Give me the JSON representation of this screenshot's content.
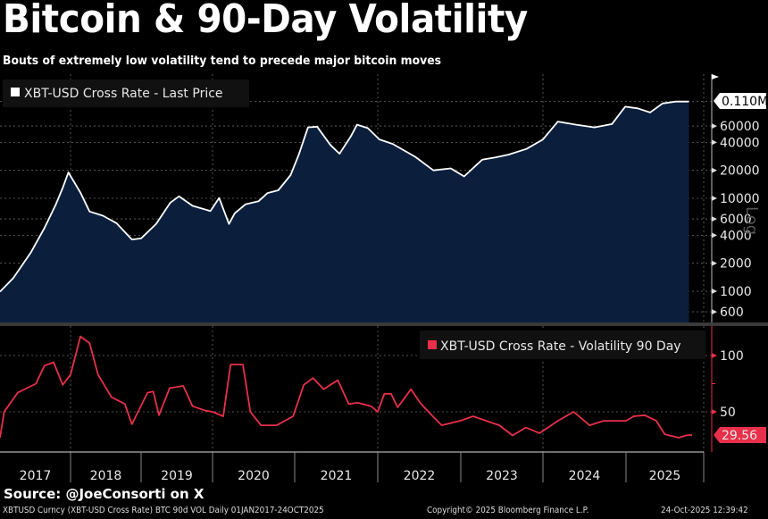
{
  "header": {
    "title": "Bitcoin & 90-Day Volatility",
    "subtitle": "Bouts of extremely low volatility tend to precede major bitcoin moves"
  },
  "footer": {
    "source": "Source: @JoeConsorti on X",
    "security_line": "XBTUSD Curncy (XBT-USD Cross Rate) BTC 90d VOL Daily 01JAN2017-24OCT2025",
    "copyright": "Copyright© 2025 Bloomberg Finance L.P.",
    "timestamp": "24-Oct-2025 12:39:42"
  },
  "colors": {
    "background": "#000000",
    "price_line": "#ffffff",
    "price_fill": "#0b1f3d",
    "vol_line": "#e8304a",
    "grid": "#6a6a6a"
  },
  "chart_data": [
    {
      "type": "area",
      "title": "XBT-USD Cross Rate - Last Price",
      "legend": "XBT-USD Cross Rate - Last Price",
      "legend_position": "top-left",
      "yscale": "log",
      "ylabel": "Log",
      "ylim": [
        500,
        150000
      ],
      "yticks": [
        600,
        1000,
        2000,
        4000,
        6000,
        10000,
        20000,
        40000,
        60000
      ],
      "ytick_labels": [
        "600",
        "1000",
        "2000",
        "4000",
        "6000",
        "10000",
        "20000",
        "40000",
        "60000"
      ],
      "last_value_label": "0.110M",
      "last_value": 110000,
      "grid": true,
      "x": [
        2017.0,
        2017.19,
        2017.44,
        2017.63,
        2017.79,
        2017.89,
        2017.97,
        2018.14,
        2018.27,
        2018.46,
        2018.65,
        2018.87,
        2019.0,
        2019.21,
        2019.41,
        2019.53,
        2019.72,
        2019.97,
        2020.08,
        2020.2,
        2020.27,
        2020.4,
        2020.56,
        2020.67,
        2020.8,
        2020.95,
        2021.05,
        2021.16,
        2021.27,
        2021.43,
        2021.54,
        2021.68,
        2021.75,
        2021.88,
        2022.02,
        2022.18,
        2022.45,
        2022.67,
        2022.88,
        2023.04,
        2023.26,
        2023.42,
        2023.58,
        2023.8,
        2024.0,
        2024.18,
        2024.4,
        2024.62,
        2024.83,
        2024.99,
        2025.15,
        2025.31,
        2025.47,
        2025.64,
        2025.81
      ],
      "values": [
        990,
        1390,
        2640,
        4800,
        8550,
        13000,
        19000,
        11500,
        7200,
        6500,
        5400,
        3600,
        3700,
        5300,
        9000,
        10500,
        8300,
        7300,
        10100,
        5300,
        6900,
        8600,
        9300,
        11400,
        12200,
        17800,
        29500,
        58000,
        59000,
        37500,
        30200,
        47000,
        62000,
        57000,
        43000,
        38500,
        28000,
        20000,
        21000,
        17200,
        26000,
        27500,
        29500,
        34000,
        43000,
        67000,
        62000,
        58000,
        63000,
        97000,
        93000,
        84000,
        105000,
        110000,
        110000
      ]
    },
    {
      "type": "line",
      "title": "XBT-USD Cross Rate - Volatility 90 Day",
      "legend": "XBT-USD Cross Rate - Volatility 90 Day",
      "legend_position": "top-right",
      "ylim": [
        15,
        125
      ],
      "yticks": [
        50,
        100
      ],
      "ytick_labels": [
        "50",
        "100"
      ],
      "last_value_label": "29.56",
      "last_value": 29.56,
      "grid": true,
      "x": [
        2017.0,
        2017.06,
        2017.25,
        2017.51,
        2017.63,
        2017.76,
        2017.89,
        2018.0,
        2018.14,
        2018.27,
        2018.39,
        2018.58,
        2018.77,
        2018.87,
        2019.09,
        2019.17,
        2019.25,
        2019.4,
        2019.59,
        2019.72,
        2019.9,
        2020.0,
        2020.13,
        2020.22,
        2020.37,
        2020.46,
        2020.59,
        2020.78,
        2020.98,
        2021.11,
        2021.22,
        2021.35,
        2021.43,
        2021.52,
        2021.65,
        2021.76,
        2021.92,
        2022.0,
        2022.08,
        2022.16,
        2022.24,
        2022.4,
        2022.51,
        2022.61,
        2022.77,
        2022.99,
        2023.15,
        2023.31,
        2023.47,
        2023.63,
        2023.79,
        2023.96,
        2024.18,
        2024.37,
        2024.56,
        2024.73,
        2024.89,
        2025.0,
        2025.1,
        2025.24,
        2025.39,
        2025.5,
        2025.68,
        2025.77,
        2025.85
      ],
      "values": [
        27,
        50,
        67,
        75,
        91,
        94,
        74,
        83,
        117,
        111,
        83,
        63,
        57,
        39,
        67,
        68,
        47,
        71,
        73,
        55,
        51,
        50,
        46,
        92,
        92,
        50,
        38,
        38,
        46,
        74,
        80,
        70,
        74,
        78,
        57,
        58,
        55,
        50,
        66,
        66,
        54,
        70,
        58,
        50,
        38,
        42,
        46,
        42,
        38,
        29,
        36,
        31,
        42,
        50,
        38,
        42,
        42,
        42,
        46,
        47,
        42,
        30,
        27,
        29,
        29.56
      ]
    }
  ],
  "xaxis": {
    "year_labels": [
      "2017",
      "2018",
      "2019",
      "2020",
      "2021",
      "2022",
      "2023",
      "2024",
      "2025"
    ]
  }
}
